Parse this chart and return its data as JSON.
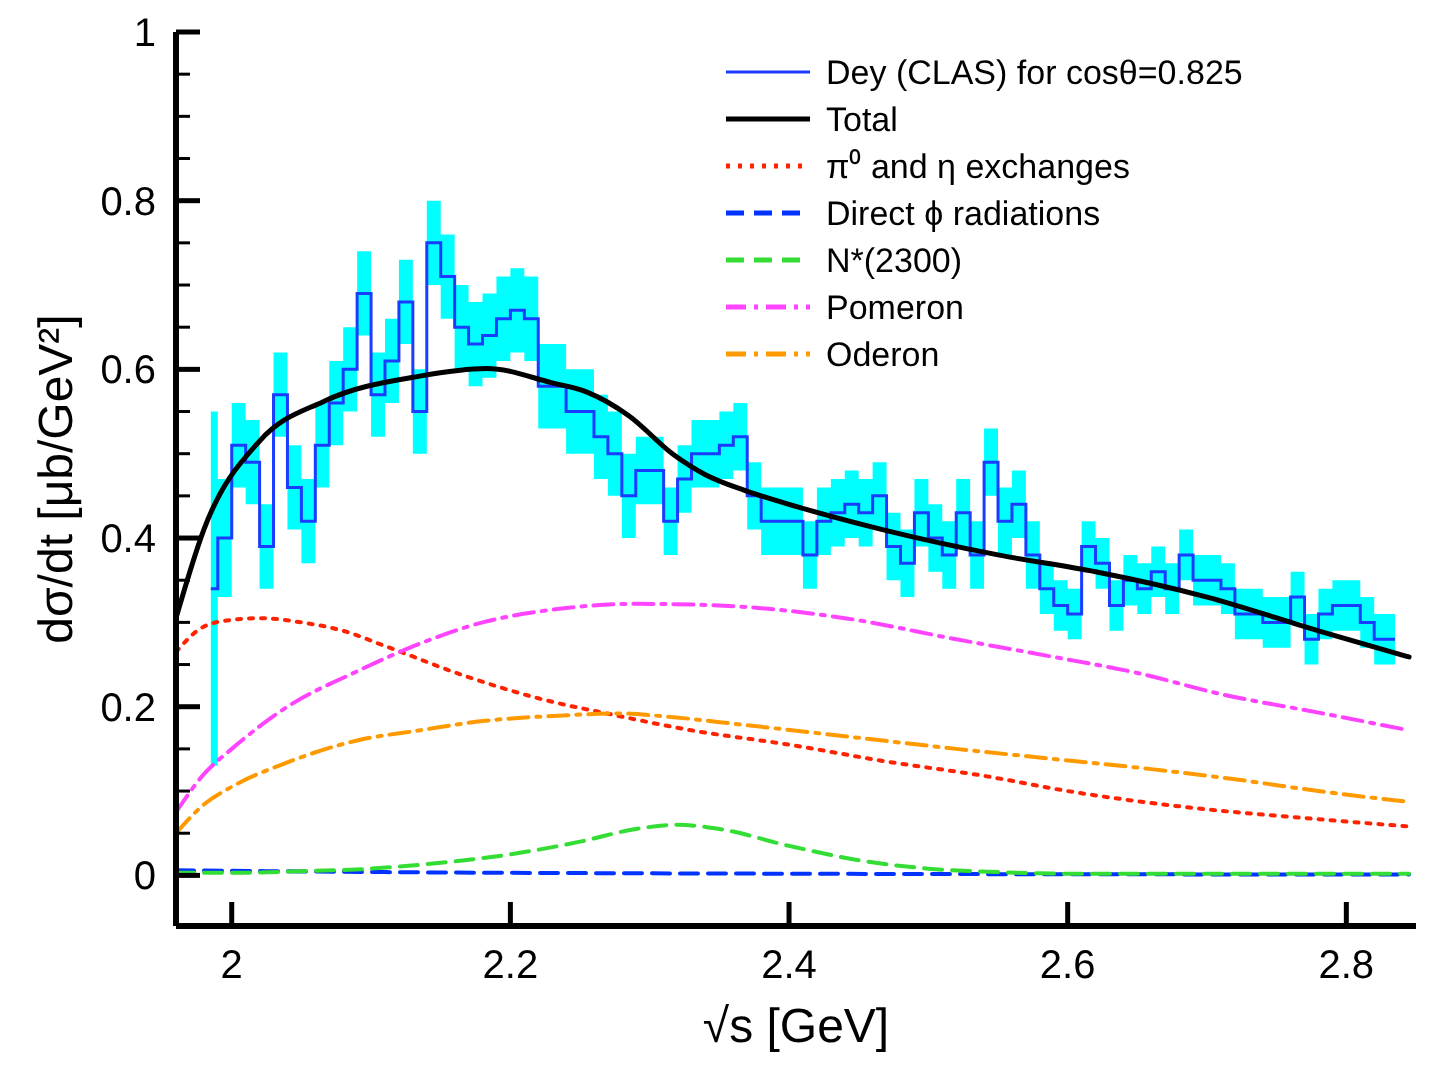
{
  "chart_data": {
    "type": "line",
    "xlabel": "√s [GeV]",
    "ylabel": "dσ/dt [μb/GeV²]",
    "xlim": [
      1.96,
      2.85
    ],
    "ylim": [
      -0.06,
      1
    ],
    "xticks": [
      2,
      2.2,
      2.4,
      2.6,
      2.8
    ],
    "yticks": [
      0,
      {
        "value": 0.05,
        "label": null
      },
      {
        "value": 0.1,
        "label": null
      },
      {
        "value": 0.15,
        "label": null
      },
      0.2,
      {
        "value": 0.25,
        "label": null
      },
      {
        "value": 0.3,
        "label": null
      },
      {
        "value": 0.35,
        "label": null
      },
      0.4,
      {
        "value": 0.45,
        "label": null
      },
      {
        "value": 0.5,
        "label": null
      },
      {
        "value": 0.55,
        "label": null
      },
      0.6,
      {
        "value": 0.65,
        "label": null
      },
      {
        "value": 0.7,
        "label": null
      },
      {
        "value": 0.75,
        "label": null
      },
      0.8,
      {
        "value": 0.85,
        "label": null
      },
      {
        "value": 0.9,
        "label": null
      },
      {
        "value": 0.95,
        "label": null
      },
      1
    ],
    "grid": false,
    "legend": "top right",
    "series": [
      {
        "type": "step",
        "name": "Dey (CLAS) for cosθ=0.825",
        "color": "#1a3cff",
        "line_style": "solid",
        "x": [
          1.985,
          1.995,
          2.005,
          2.015,
          2.025,
          2.035,
          2.045,
          2.055,
          2.065,
          2.075,
          2.085,
          2.095,
          2.105,
          2.115,
          2.125,
          2.135,
          2.145,
          2.155,
          2.165,
          2.175,
          2.185,
          2.195,
          2.205,
          2.215,
          2.225,
          2.235,
          2.245,
          2.255,
          2.265,
          2.275,
          2.285,
          2.295,
          2.305,
          2.315,
          2.325,
          2.335,
          2.345,
          2.355,
          2.365,
          2.375,
          2.385,
          2.395,
          2.405,
          2.415,
          2.425,
          2.435,
          2.445,
          2.455,
          2.465,
          2.475,
          2.485,
          2.495,
          2.505,
          2.515,
          2.525,
          2.535,
          2.545,
          2.555,
          2.565,
          2.575,
          2.585,
          2.595,
          2.605,
          2.615,
          2.625,
          2.635,
          2.645,
          2.655,
          2.665,
          2.675,
          2.685,
          2.695,
          2.705,
          2.715,
          2.725,
          2.735,
          2.745,
          2.755,
          2.765,
          2.775,
          2.785,
          2.795,
          2.805,
          2.815,
          2.825,
          2.835
        ],
        "values": [
          0.34,
          0.4,
          0.51,
          0.49,
          0.39,
          0.57,
          0.46,
          0.42,
          0.51,
          0.56,
          0.6,
          0.69,
          0.57,
          0.61,
          0.68,
          0.55,
          0.75,
          0.71,
          0.65,
          0.63,
          0.64,
          0.66,
          0.67,
          0.66,
          0.58,
          0.58,
          0.55,
          0.55,
          0.52,
          0.5,
          0.45,
          0.48,
          0.48,
          0.42,
          0.47,
          0.5,
          0.5,
          0.51,
          0.52,
          0.45,
          0.42,
          0.42,
          0.42,
          0.38,
          0.42,
          0.43,
          0.44,
          0.43,
          0.45,
          0.39,
          0.37,
          0.43,
          0.4,
          0.38,
          0.43,
          0.38,
          0.49,
          0.42,
          0.44,
          0.38,
          0.34,
          0.32,
          0.31,
          0.39,
          0.37,
          0.32,
          0.35,
          0.34,
          0.36,
          0.34,
          0.38,
          0.35,
          0.35,
          0.34,
          0.31,
          0.31,
          0.3,
          0.3,
          0.33,
          0.28,
          0.31,
          0.32,
          0.32,
          0.3,
          0.28,
          0.28
        ],
        "lower": [
          0.13,
          0.33,
          0.46,
          0.44,
          0.34,
          0.52,
          0.41,
          0.37,
          0.46,
          0.51,
          0.55,
          0.64,
          0.52,
          0.56,
          0.63,
          0.5,
          0.7,
          0.66,
          0.6,
          0.58,
          0.59,
          0.61,
          0.62,
          0.61,
          0.53,
          0.53,
          0.5,
          0.5,
          0.47,
          0.45,
          0.4,
          0.44,
          0.44,
          0.38,
          0.43,
          0.46,
          0.46,
          0.47,
          0.48,
          0.41,
          0.38,
          0.38,
          0.38,
          0.34,
          0.38,
          0.39,
          0.4,
          0.39,
          0.41,
          0.35,
          0.33,
          0.39,
          0.36,
          0.34,
          0.39,
          0.34,
          0.45,
          0.38,
          0.4,
          0.34,
          0.31,
          0.29,
          0.28,
          0.36,
          0.34,
          0.29,
          0.32,
          0.31,
          0.33,
          0.31,
          0.35,
          0.32,
          0.32,
          0.31,
          0.28,
          0.28,
          0.27,
          0.27,
          0.3,
          0.25,
          0.28,
          0.29,
          0.29,
          0.27,
          0.25,
          0.25
        ],
        "upper": [
          0.55,
          0.47,
          0.56,
          0.54,
          0.44,
          0.62,
          0.51,
          0.47,
          0.56,
          0.61,
          0.65,
          0.74,
          0.62,
          0.66,
          0.73,
          0.6,
          0.8,
          0.76,
          0.7,
          0.68,
          0.69,
          0.71,
          0.72,
          0.71,
          0.63,
          0.63,
          0.6,
          0.6,
          0.57,
          0.55,
          0.5,
          0.52,
          0.52,
          0.46,
          0.51,
          0.54,
          0.54,
          0.55,
          0.56,
          0.49,
          0.46,
          0.46,
          0.46,
          0.42,
          0.46,
          0.47,
          0.48,
          0.47,
          0.49,
          0.43,
          0.41,
          0.47,
          0.44,
          0.42,
          0.47,
          0.42,
          0.53,
          0.46,
          0.48,
          0.42,
          0.37,
          0.35,
          0.34,
          0.42,
          0.4,
          0.35,
          0.38,
          0.37,
          0.39,
          0.37,
          0.41,
          0.38,
          0.38,
          0.37,
          0.34,
          0.34,
          0.33,
          0.33,
          0.36,
          0.31,
          0.34,
          0.35,
          0.35,
          0.33,
          0.31,
          0.31
        ]
      },
      {
        "name": "Total",
        "color": "#000000",
        "line_style": "solid",
        "x": [
          1.96,
          1.98,
          2.02,
          2.066,
          2.135,
          2.183,
          2.23,
          2.255,
          2.285,
          2.317,
          2.34,
          2.369,
          2.4,
          2.467,
          2.55,
          2.62,
          2.7,
          2.78,
          2.845
        ],
        "values": [
          0.305,
          0.41,
          0.515,
          0.562,
          0.592,
          0.601,
          0.584,
          0.573,
          0.545,
          0.499,
          0.475,
          0.456,
          0.44,
          0.41,
          0.38,
          0.36,
          0.33,
          0.29,
          0.259
        ]
      },
      {
        "name": "π⁰ and η exchanges",
        "color": "#ff2200",
        "line_style": "dotted",
        "x": [
          1.96,
          1.98,
          2.0,
          2.02,
          2.05,
          2.08,
          2.11,
          2.17,
          2.22,
          2.275,
          2.33,
          2.4,
          2.47,
          2.54,
          2.6,
          2.69,
          2.77,
          2.845
        ],
        "values": [
          0.265,
          0.295,
          0.303,
          0.305,
          0.3,
          0.29,
          0.272,
          0.235,
          0.21,
          0.19,
          0.172,
          0.155,
          0.135,
          0.118,
          0.1,
          0.08,
          0.068,
          0.058
        ]
      },
      {
        "name": "Direct ϕ radiations",
        "color": "#0033ff",
        "line_style": "dashed",
        "x": [
          1.96,
          2.1,
          2.4,
          2.845
        ],
        "values": [
          0.006,
          0.004,
          0.002,
          0.001
        ]
      },
      {
        "name": "N*(2300)",
        "color": "#33dd33",
        "line_style": "dashed",
        "x": [
          1.96,
          2.0,
          2.05,
          2.1,
          2.15,
          2.2,
          2.25,
          2.29,
          2.32,
          2.35,
          2.4,
          2.45,
          2.5,
          2.55,
          2.6,
          2.7,
          2.845
        ],
        "values": [
          0.003,
          0.003,
          0.005,
          0.008,
          0.015,
          0.025,
          0.04,
          0.055,
          0.06,
          0.055,
          0.035,
          0.018,
          0.008,
          0.004,
          0.002,
          0.002,
          0.002
        ]
      },
      {
        "name": "Pomeron",
        "color": "#ff44ff",
        "line_style": "dashdot",
        "x": [
          1.96,
          1.98,
          2.0,
          2.04,
          2.09,
          2.14,
          2.18,
          2.23,
          2.29,
          2.35,
          2.44,
          2.52,
          2.59,
          2.65,
          2.71,
          2.78,
          2.845
        ],
        "values": [
          0.075,
          0.12,
          0.15,
          0.2,
          0.242,
          0.278,
          0.3,
          0.315,
          0.322,
          0.32,
          0.305,
          0.28,
          0.259,
          0.24,
          0.215,
          0.193,
          0.172
        ]
      },
      {
        "name": "Oderon",
        "color": "#ff9900",
        "line_style": "dashdot",
        "x": [
          1.96,
          1.98,
          2.0,
          2.04,
          2.09,
          2.135,
          2.18,
          2.23,
          2.28,
          2.3,
          2.37,
          2.44,
          2.52,
          2.59,
          2.66,
          2.72,
          2.78,
          2.845
        ],
        "values": [
          0.05,
          0.084,
          0.105,
          0.134,
          0.16,
          0.172,
          0.183,
          0.189,
          0.192,
          0.19,
          0.178,
          0.165,
          0.15,
          0.138,
          0.126,
          0.114,
          0.1,
          0.087
        ]
      }
    ]
  }
}
